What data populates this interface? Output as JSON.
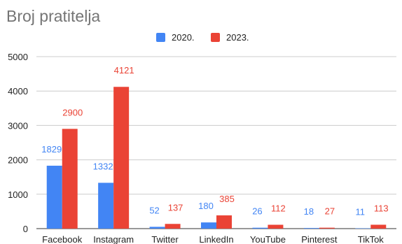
{
  "chart_data": {
    "type": "bar",
    "title": "Broj pratitelja",
    "xlabel": "",
    "ylabel": "",
    "categories": [
      "Facebook",
      "Instagram",
      "Twitter",
      "LinkedIn",
      "YouTube",
      "Pinterest",
      "TikTok"
    ],
    "series": [
      {
        "name": "2020.",
        "color": "#4285f4",
        "values": [
          1829,
          1332,
          52,
          180,
          26,
          18,
          11
        ]
      },
      {
        "name": "2023.",
        "color": "#ea4335",
        "values": [
          2900,
          4121,
          137,
          385,
          112,
          27,
          113
        ]
      }
    ],
    "ylim": [
      0,
      5000
    ],
    "yticks": [
      0,
      1000,
      2000,
      3000,
      4000,
      5000
    ],
    "grid": true,
    "legend_position": "top"
  }
}
